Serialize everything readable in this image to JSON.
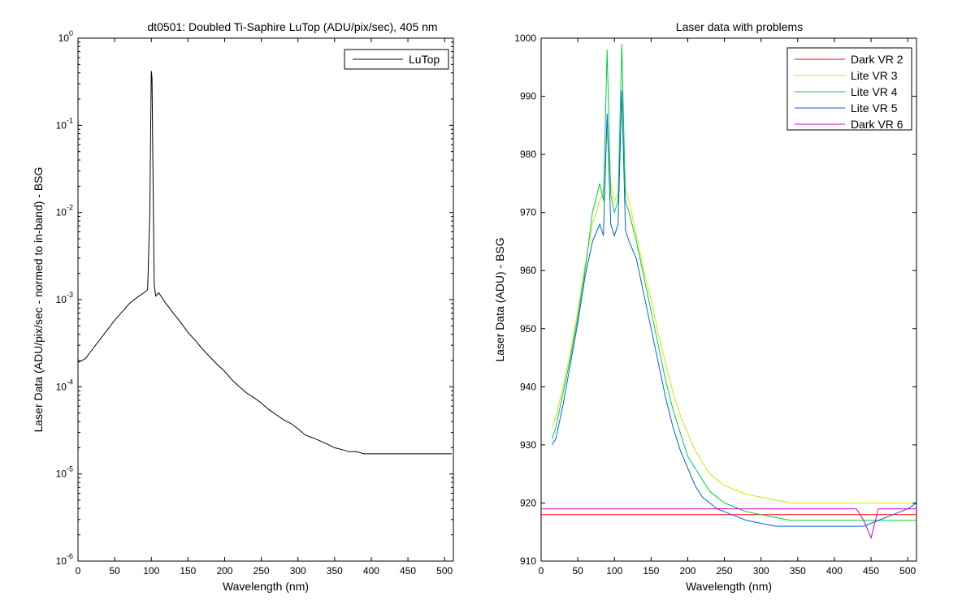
{
  "chart_data": [
    {
      "type": "line",
      "title": "dt0501: Doubled Ti-Saphire LuTop (ADU/pix/sec), 405 nm",
      "xlabel": "Wavelength (nm)",
      "ylabel": "Laser Data (ADU/pix/sec - normed to in-band) - BSG",
      "xlim": [
        0,
        512
      ],
      "ylim": [
        1e-06,
        1
      ],
      "yscale": "log",
      "xticks": [
        0,
        50,
        100,
        150,
        200,
        250,
        300,
        350,
        400,
        450,
        500
      ],
      "yticks": [
        {
          "value": 1e-06,
          "base": "10",
          "exp": "-6"
        },
        {
          "value": 1e-05,
          "base": "10",
          "exp": "-5"
        },
        {
          "value": 0.0001,
          "base": "10",
          "exp": "-4"
        },
        {
          "value": 0.001,
          "base": "10",
          "exp": "-3"
        },
        {
          "value": 0.01,
          "base": "10",
          "exp": "-2"
        },
        {
          "value": 0.1,
          "base": "10",
          "exp": "-1"
        },
        {
          "value": 1,
          "base": "10",
          "exp": "0"
        }
      ],
      "legend": "top-right",
      "series": [
        {
          "name": "LuTop",
          "color": "#000000",
          "x": [
            0,
            10,
            20,
            30,
            40,
            50,
            60,
            70,
            80,
            90,
            95,
            98,
            100,
            101,
            102,
            104,
            106,
            110,
            120,
            130,
            140,
            150,
            160,
            170,
            180,
            190,
            200,
            210,
            220,
            230,
            240,
            250,
            260,
            270,
            280,
            290,
            300,
            310,
            320,
            330,
            340,
            350,
            360,
            370,
            380,
            390,
            400,
            410,
            420,
            430,
            440,
            450,
            460,
            470,
            480,
            490,
            500,
            510
          ],
          "y": [
            0.00019,
            0.00021,
            0.00027,
            0.00035,
            0.00045,
            0.00058,
            0.00072,
            0.0009,
            0.00105,
            0.0012,
            0.0013,
            0.01,
            0.42,
            0.35,
            0.05,
            0.0015,
            0.0011,
            0.0012,
            0.0009,
            0.0007,
            0.00055,
            0.00042,
            0.00034,
            0.00027,
            0.00022,
            0.00018,
            0.00015,
            0.00012,
            0.0001,
            8.5e-05,
            7.5e-05,
            6.5e-05,
            5.5e-05,
            4.8e-05,
            4.2e-05,
            3.8e-05,
            3.3e-05,
            2.8e-05,
            2.6e-05,
            2.4e-05,
            2.2e-05,
            2e-05,
            1.9e-05,
            1.8e-05,
            1.8e-05,
            1.7e-05,
            1.7e-05,
            1.7e-05,
            1.7e-05,
            1.7e-05,
            1.7e-05,
            1.7e-05,
            1.7e-05,
            1.7e-05,
            1.7e-05,
            1.7e-05,
            1.7e-05,
            1.7e-05
          ]
        }
      ]
    },
    {
      "type": "line",
      "title": "Laser data with problems",
      "xlabel": "Wavelength (nm)",
      "ylabel": "Laser Data (ADU) - BSG",
      "xlim": [
        0,
        512
      ],
      "ylim": [
        910,
        1000
      ],
      "xticks": [
        0,
        50,
        100,
        150,
        200,
        250,
        300,
        350,
        400,
        450,
        500
      ],
      "yticks": [
        910,
        920,
        930,
        940,
        950,
        960,
        970,
        980,
        990,
        1000
      ],
      "legend": "top-right",
      "series": [
        {
          "name": "Dark VR 2",
          "color": "#ff0000",
          "x": [
            0,
            50,
            100,
            150,
            200,
            250,
            300,
            350,
            400,
            450,
            500,
            512
          ],
          "y": [
            918,
            918,
            918,
            918,
            918,
            918,
            918,
            918,
            918,
            918,
            918,
            918
          ]
        },
        {
          "name": "Lite VR 3",
          "color": "#d4e600",
          "x": [
            15,
            20,
            30,
            40,
            50,
            60,
            70,
            80,
            85,
            90,
            95,
            100,
            105,
            110,
            115,
            120,
            130,
            140,
            150,
            160,
            170,
            180,
            190,
            200,
            210,
            220,
            230,
            240,
            250,
            260,
            270,
            280,
            300,
            320,
            340,
            360,
            380,
            400,
            420,
            440,
            460,
            480,
            500,
            512
          ],
          "y": [
            933,
            935,
            940,
            946,
            953,
            961,
            968,
            972,
            974,
            984,
            975,
            972,
            973,
            990,
            974,
            972,
            966,
            960,
            955,
            949,
            944,
            939,
            935,
            932,
            929,
            927,
            925,
            924,
            923,
            922.5,
            922,
            921.5,
            921,
            920.5,
            920,
            920,
            920,
            920,
            920,
            920,
            920,
            920,
            920,
            920
          ]
        },
        {
          "name": "Lite VR 4",
          "color": "#00cc44",
          "x": [
            15,
            20,
            30,
            40,
            50,
            60,
            70,
            80,
            85,
            90,
            95,
            100,
            105,
            110,
            115,
            120,
            130,
            140,
            150,
            160,
            170,
            180,
            190,
            200,
            210,
            220,
            230,
            240,
            250,
            260,
            270,
            280,
            300,
            320,
            340,
            360,
            380,
            400,
            420,
            440,
            460,
            480,
            500,
            512
          ],
          "y": [
            931,
            933,
            939,
            945,
            952,
            960,
            970,
            975,
            972,
            998,
            973,
            970,
            972,
            999,
            972,
            970,
            965,
            959,
            953,
            947,
            941,
            936,
            932,
            928,
            926,
            924,
            922,
            921,
            920,
            919.5,
            919,
            918.5,
            918,
            917.5,
            917,
            917,
            917,
            917,
            917,
            917,
            917,
            917,
            917,
            917
          ]
        },
        {
          "name": "Lite VR 5",
          "color": "#0060e0",
          "x": [
            15,
            20,
            30,
            40,
            50,
            60,
            70,
            80,
            85,
            90,
            95,
            100,
            105,
            110,
            115,
            120,
            130,
            140,
            150,
            160,
            170,
            180,
            190,
            200,
            210,
            220,
            230,
            240,
            250,
            260,
            270,
            280,
            300,
            320,
            340,
            360,
            380,
            400,
            420,
            440,
            460,
            480,
            500,
            512
          ],
          "y": [
            930,
            931,
            937,
            944,
            951,
            959,
            965,
            968,
            966,
            987,
            968,
            966,
            968,
            991,
            967,
            965,
            962,
            956,
            950,
            944,
            938,
            933,
            929,
            926,
            923,
            921,
            920,
            919,
            918.5,
            918,
            917.5,
            917,
            916.5,
            916,
            916,
            916,
            916,
            916,
            916,
            916,
            917,
            918,
            919,
            920
          ]
        },
        {
          "name": "Dark VR 6",
          "color": "#cc00cc",
          "x": [
            0,
            50,
            100,
            150,
            200,
            250,
            300,
            350,
            400,
            430,
            440,
            450,
            460,
            470,
            500,
            512
          ],
          "y": [
            919,
            919,
            919,
            919,
            919,
            919,
            919,
            919,
            919,
            919,
            917,
            914,
            919,
            919,
            919,
            919
          ]
        }
      ]
    }
  ]
}
